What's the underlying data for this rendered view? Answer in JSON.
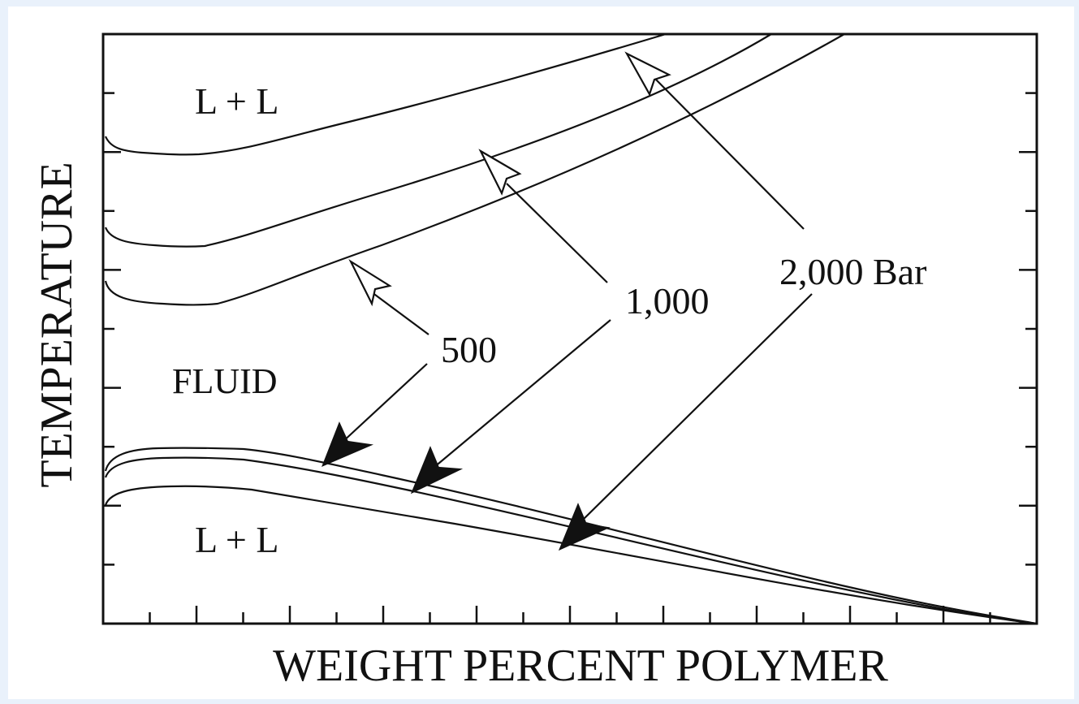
{
  "diagram": {
    "x_axis_label": "WEIGHT PERCENT POLYMER",
    "y_axis_label": "TEMPERATURE",
    "region_labels": {
      "upper": "L + L",
      "middle": "FLUID",
      "lower": "L + L"
    },
    "pressure_labels": {
      "p500": "500",
      "p1000": "1,000",
      "p2000": "2,000 Bar"
    },
    "colors": {
      "background": "#e9f1fb",
      "panel": "#ffffff",
      "ink": "#111111"
    }
  }
}
